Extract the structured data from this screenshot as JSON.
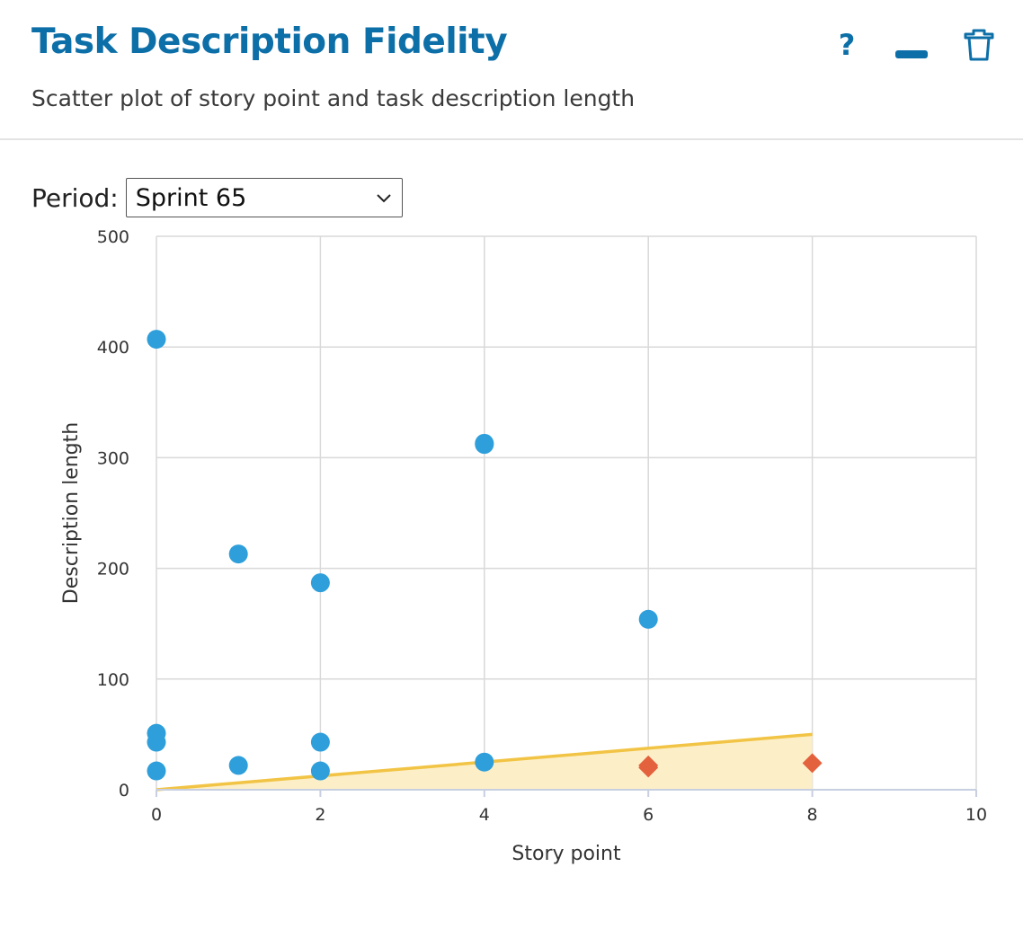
{
  "header": {
    "title": "Task Description Fidelity",
    "subtitle": "Scatter plot of story point and task description length",
    "help_label": "?",
    "icons": {
      "help": "question-icon",
      "minimize": "minimize-icon",
      "delete": "trash-icon"
    }
  },
  "period": {
    "label": "Period:",
    "selected": "Sprint 65"
  },
  "colors": {
    "accent": "#0d6fa8",
    "point": "#2e9fdb",
    "point_under": "#4f9fb8",
    "flag": "#e4613d",
    "threshold": "#f2c445",
    "threshold_fill": "#fcefc8"
  },
  "chart_data": {
    "type": "scatter",
    "xlabel": "Story point",
    "ylabel": "Description length",
    "xlim": [
      0,
      10
    ],
    "ylim": [
      0,
      500
    ],
    "xticks": [
      "0",
      "2",
      "4",
      "6",
      "8",
      "10"
    ],
    "yticks": [
      "0",
      "100",
      "200",
      "300",
      "400",
      "500"
    ],
    "grid": true,
    "series": [
      {
        "marker": "circle",
        "points": [
          {
            "x": 0,
            "y": 407
          },
          {
            "x": 0,
            "y": 51
          },
          {
            "x": 0,
            "y": 43
          },
          {
            "x": 0,
            "y": 17
          },
          {
            "x": 1,
            "y": 213
          },
          {
            "x": 1,
            "y": 22
          },
          {
            "x": 2,
            "y": 187
          },
          {
            "x": 2,
            "y": 43
          },
          {
            "x": 2,
            "y": 17
          },
          {
            "x": 4,
            "y": 313
          },
          {
            "x": 4,
            "y": 312
          },
          {
            "x": 4,
            "y": 25
          },
          {
            "x": 6,
            "y": 154
          }
        ]
      },
      {
        "marker": "diamond",
        "points": [
          {
            "x": 6,
            "y": 22
          },
          {
            "x": 6,
            "y": 20
          },
          {
            "x": 8,
            "y": 24
          }
        ]
      }
    ],
    "threshold": {
      "x": [
        0,
        8
      ],
      "y": [
        0,
        50
      ]
    }
  }
}
